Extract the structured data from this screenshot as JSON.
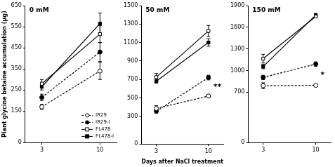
{
  "chart_data": [
    {
      "type": "line",
      "title": "0 mM",
      "y_label": "Plant glycine betaine accumulation (μg)",
      "x": [
        3,
        10
      ],
      "xlim": [
        1,
        12
      ],
      "xticks": [
        3,
        10
      ],
      "ylim": [
        0,
        650
      ],
      "yticks": [
        0,
        150,
        250,
        350,
        450,
        550,
        650
      ],
      "grid": false,
      "legend": "lower right",
      "series": [
        {
          "name": "IR29",
          "color": "#000000",
          "marker": "circle_open",
          "line_style": "dashed",
          "values": [
            170,
            340
          ],
          "errors": [
            12,
            40
          ]
        },
        {
          "name": "IR29-I",
          "color": "#000000",
          "marker": "circle",
          "line_style": "dashed",
          "values": [
            215,
            430
          ],
          "errors": [
            15,
            45
          ]
        },
        {
          "name": "FL478",
          "color": "#000000",
          "marker": "square_open",
          "line_style": "solid",
          "values": [
            280,
            515
          ],
          "errors": [
            20,
            40
          ]
        },
        {
          "name": "FL478-I",
          "color": "#000000",
          "marker": "square",
          "line_style": "solid",
          "values": [
            265,
            565
          ],
          "errors": [
            15,
            50
          ]
        }
      ]
    },
    {
      "type": "line",
      "title": "50 mM",
      "x_label": "Days after NaCl treatment",
      "x": [
        3,
        10
      ],
      "xlim": [
        1,
        12
      ],
      "xticks": [
        3,
        10
      ],
      "ylim": [
        0,
        1500
      ],
      "yticks": [
        0,
        300,
        500,
        700,
        900,
        1100,
        1300,
        1500
      ],
      "grid": false,
      "annotations": [
        {
          "x": 10,
          "y": 620,
          "text": "**"
        }
      ],
      "series": [
        {
          "color": "#000000",
          "marker": "circle_open",
          "line_style": "dashed",
          "values": [
            385,
            520
          ],
          "errors": [
            30,
            12
          ]
        },
        {
          "color": "#000000",
          "marker": "circle",
          "line_style": "dashed",
          "values": [
            355,
            720
          ],
          "errors": [
            20,
            25
          ]
        },
        {
          "color": "#000000",
          "marker": "square_open",
          "line_style": "solid",
          "values": [
            725,
            1225
          ],
          "errors": [
            40,
            60
          ]
        },
        {
          "color": "#000000",
          "marker": "square",
          "line_style": "solid",
          "values": [
            680,
            1100
          ],
          "errors": [
            20,
            40
          ]
        }
      ]
    },
    {
      "type": "line",
      "title": "150 mM",
      "x": [
        3,
        10
      ],
      "xlim": [
        1,
        12
      ],
      "xticks": [
        3,
        10
      ],
      "ylim": [
        0,
        1900
      ],
      "yticks": [
        0,
        700,
        1000,
        1300,
        1600,
        1900
      ],
      "grid": false,
      "annotations": [
        {
          "x": 10,
          "y": 940,
          "text": "*"
        }
      ],
      "series": [
        {
          "color": "#000000",
          "marker": "circle_open",
          "line_style": "dashed",
          "values": [
            790,
            795
          ],
          "errors": [
            40,
            15
          ]
        },
        {
          "color": "#000000",
          "marker": "circle",
          "line_style": "dashed",
          "values": [
            905,
            1090
          ],
          "errors": [
            30,
            30
          ]
        },
        {
          "color": "#000000",
          "marker": "square_open",
          "line_style": "solid",
          "values": [
            1165,
            1750
          ],
          "errors": [
            60,
            20
          ]
        },
        {
          "color": "#000000",
          "marker": "square",
          "line_style": "solid",
          "values": [
            1055,
            1770
          ],
          "errors": [
            30,
            20
          ]
        }
      ]
    }
  ]
}
